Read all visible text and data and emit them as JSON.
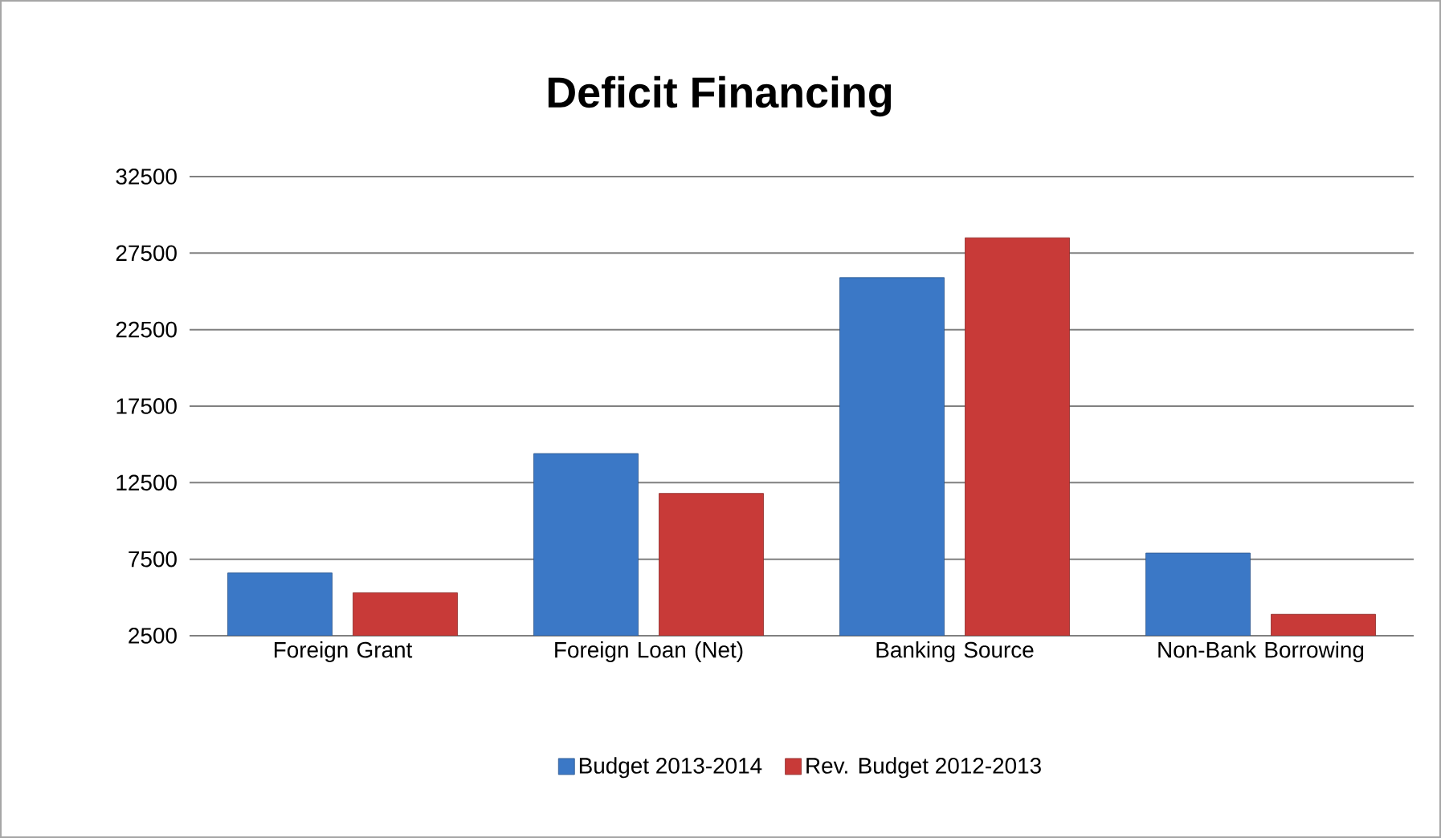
{
  "chart_data": {
    "type": "bar",
    "title": "Deficit Financing",
    "categories": [
      "Foreign Grant",
      "Foreign Loan (Net)",
      "Banking Source",
      "Non-Bank Borrowing"
    ],
    "series": [
      {
        "name": "Budget 2013-2014",
        "color": "#3b78c6",
        "values": [
          6600,
          14400,
          25900,
          7900
        ]
      },
      {
        "name": "Rev. Budget 2012-2013",
        "color": "#c83a38",
        "values": [
          5300,
          11800,
          28500,
          3900
        ]
      }
    ],
    "ylim": [
      2500,
      32500
    ],
    "yticks": [
      2500,
      7500,
      12500,
      17500,
      22500,
      27500,
      32500
    ],
    "grid": "y",
    "legend": "bottom"
  }
}
